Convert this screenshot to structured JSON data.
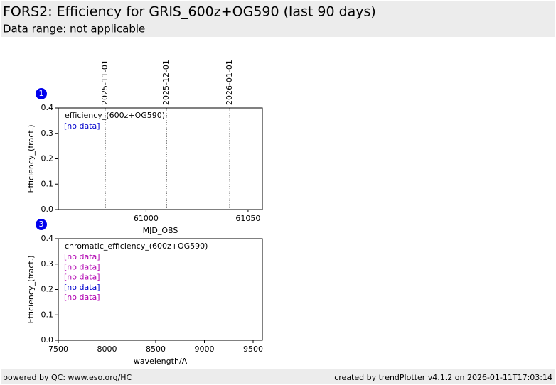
{
  "header": {
    "title": "FORS2: Efficiency for GRIS_600z+OG590 (last 90 days)",
    "subtitle": "Data range: not applicable"
  },
  "chart_data": [
    {
      "type": "line",
      "panel": "1",
      "legend_title": "efficiency_(600z+OG590)",
      "notes": [
        {
          "text": "[no data]",
          "color": "#0000cc"
        }
      ],
      "xlabel": "MJD_OBS",
      "ylabel": "Efficiency_(fract.)",
      "xlim": [
        60957,
        61057
      ],
      "xticks": [
        61000,
        61050
      ],
      "ylim": [
        0,
        0.4
      ],
      "yticks": [
        {
          "value": 0,
          "label": "0.0"
        },
        0.1,
        0.2,
        0.3,
        0.4
      ],
      "markers": [
        {
          "label": "2025-11-01",
          "x": 60980
        },
        {
          "label": "2025-12-01",
          "x": 61010
        },
        {
          "label": "2026-01-01",
          "x": 61041
        }
      ]
    },
    {
      "type": "line",
      "panel": "3",
      "legend_title": "chromatic_efficiency_(600z+OG590)",
      "notes": [
        {
          "text": "[no data]",
          "color": "#b000b0"
        },
        {
          "text": "[no data]",
          "color": "#b000b0"
        },
        {
          "text": "[no data]",
          "color": "#b000b0"
        },
        {
          "text": "[no data]",
          "color": "#0000cc"
        },
        {
          "text": "[no data]",
          "color": "#b000b0"
        }
      ],
      "xlabel": "wavelength/A",
      "ylabel": "Efficiency_(fract.)",
      "xlim": [
        7500,
        9595
      ],
      "xticks": [
        7500,
        8000,
        8500,
        9000,
        9500
      ],
      "ylim": [
        0,
        0.4
      ],
      "yticks": [
        {
          "value": 0,
          "label": "0.0"
        },
        0.1,
        0.2,
        0.3,
        0.4
      ]
    }
  ],
  "footer": {
    "left": "powered by QC: www.eso.org/HC",
    "right": "created by trendPlotter v4.1.2 on 2026-01-11T17:03:14"
  }
}
